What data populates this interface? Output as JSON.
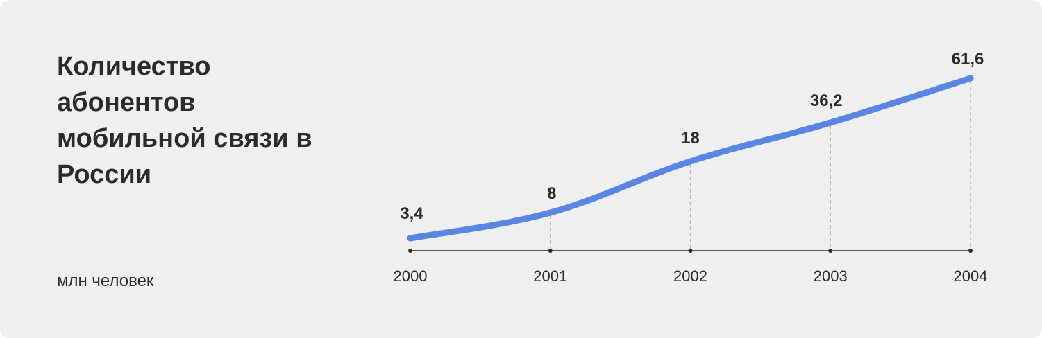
{
  "title": "Количество абонентов мобильной связи в России",
  "unit_label": "млн человек",
  "colors": {
    "background": "#efefef",
    "line": "#5b85e3",
    "text": "#2b2b2b",
    "axis": "#2b2b2b",
    "guide": "#b8b8b8"
  },
  "chart_data": {
    "type": "line",
    "title": "Количество абонентов мобильной связи в России",
    "subtitle": "млн человек",
    "categories": [
      "2000",
      "2001",
      "2002",
      "2003",
      "2004"
    ],
    "x": [
      2000,
      2001,
      2002,
      2003,
      2004
    ],
    "values": [
      3.4,
      8,
      18,
      36.2,
      61.6
    ],
    "data_labels": [
      "3,4",
      "8",
      "18",
      "36,2",
      "61,6"
    ],
    "series": [
      {
        "values": [
          3.4,
          8,
          18,
          36.2,
          61.6
        ]
      }
    ],
    "xlabel": "",
    "ylabel": "",
    "grid": false,
    "legend": "none"
  }
}
